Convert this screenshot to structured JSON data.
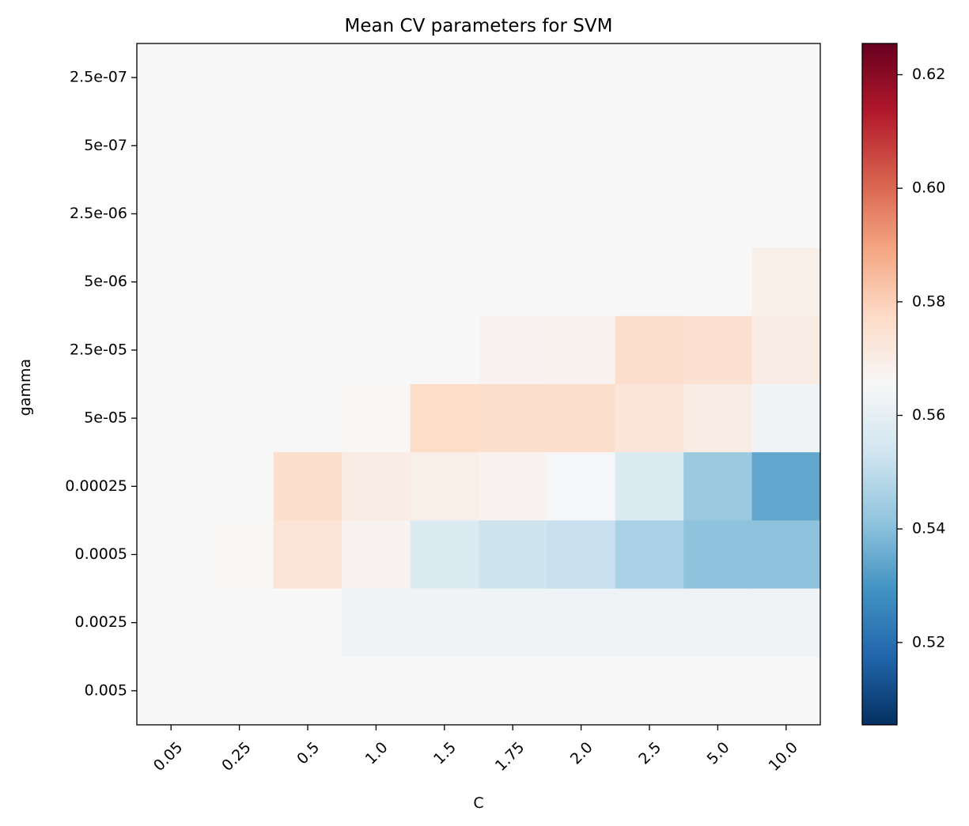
{
  "chart_data": {
    "type": "heatmap",
    "title": "Mean CV parameters for SVM",
    "xlabel": "C",
    "ylabel": "gamma",
    "x_categories": [
      "0.05",
      "0.25",
      "0.5",
      "1.0",
      "1.5",
      "1.75",
      "2.0",
      "2.5",
      "5.0",
      "10.0"
    ],
    "y_categories": [
      "2.5e-07",
      "5e-07",
      "2.5e-06",
      "5e-06",
      "2.5e-05",
      "5e-05",
      "0.00025",
      "0.0005",
      "0.0025",
      "0.005"
    ],
    "values": [
      [
        0.5655,
        0.5655,
        0.5655,
        0.5655,
        0.5655,
        0.5655,
        0.5655,
        0.5655,
        0.5655,
        0.5655
      ],
      [
        0.5655,
        0.5655,
        0.5655,
        0.5655,
        0.5655,
        0.5655,
        0.5655,
        0.5655,
        0.5655,
        0.5655
      ],
      [
        0.5655,
        0.5655,
        0.5655,
        0.5655,
        0.5655,
        0.5655,
        0.5655,
        0.5655,
        0.5655,
        0.5655
      ],
      [
        0.5655,
        0.5655,
        0.5655,
        0.5655,
        0.5655,
        0.5655,
        0.5655,
        0.5655,
        0.5655,
        0.569
      ],
      [
        0.5655,
        0.5655,
        0.5655,
        0.5655,
        0.5655,
        0.567,
        0.568,
        0.576,
        0.575,
        0.57
      ],
      [
        0.5655,
        0.5655,
        0.5655,
        0.566,
        0.577,
        0.576,
        0.576,
        0.573,
        0.57,
        0.563
      ],
      [
        0.5655,
        0.5655,
        0.576,
        0.57,
        0.569,
        0.567,
        0.565,
        0.557,
        0.543,
        0.534
      ],
      [
        0.5655,
        0.566,
        0.574,
        0.567,
        0.557,
        0.553,
        0.552,
        0.546,
        0.541,
        0.541
      ],
      [
        0.5655,
        0.5655,
        0.5655,
        0.563,
        0.563,
        0.563,
        0.563,
        0.563,
        0.563,
        0.563
      ],
      [
        0.5655,
        0.5655,
        0.5655,
        0.5655,
        0.5655,
        0.5655,
        0.5655,
        0.5655,
        0.5655,
        0.5655
      ]
    ],
    "colormap": "RdBu_r",
    "colormap_stops": [
      "#053061",
      "#2166ac",
      "#4393c3",
      "#92c5de",
      "#d1e5f0",
      "#f7f7f7",
      "#fddbc7",
      "#f4a582",
      "#d6604d",
      "#b2182b",
      "#67001f"
    ],
    "vmin": 0.5055,
    "vmax": 0.6255,
    "colorbar_ticks": [
      0.52,
      0.54,
      0.56,
      0.58,
      0.6,
      0.62
    ],
    "colorbar_tick_labels": [
      "0.52",
      "0.54",
      "0.56",
      "0.58",
      "0.60",
      "0.62"
    ]
  }
}
